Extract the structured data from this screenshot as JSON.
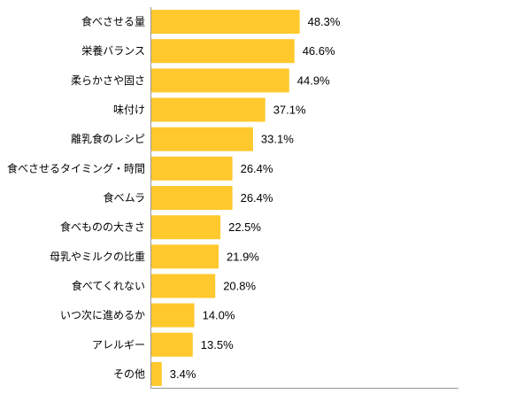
{
  "chart_data": {
    "type": "bar",
    "orientation": "horizontal",
    "categories": [
      "食べさせる量",
      "栄養バランス",
      "柔らかさや固さ",
      "味付け",
      "離乳食のレシピ",
      "食べさせるタイミング・時間",
      "食べムラ",
      "食べものの大きさ",
      "母乳やミルクの比重",
      "食べてくれない",
      "いつ次に進めるか",
      "アレルギー",
      "その他"
    ],
    "values": [
      48.3,
      46.6,
      44.9,
      37.1,
      33.1,
      26.4,
      26.4,
      22.5,
      21.9,
      20.8,
      14.0,
      13.5,
      3.4
    ],
    "value_labels": [
      "48.3%",
      "46.6%",
      "44.9%",
      "37.1%",
      "33.1%",
      "26.4%",
      "26.4%",
      "22.5%",
      "21.9%",
      "20.8%",
      "14.0%",
      "13.5%",
      "3.4%"
    ],
    "title": "",
    "xlabel": "",
    "ylabel": "",
    "xlim": [
      0,
      100
    ],
    "grid": false,
    "legend": "none",
    "bar_color": "#FFC82C",
    "axis_color": "#999999"
  }
}
